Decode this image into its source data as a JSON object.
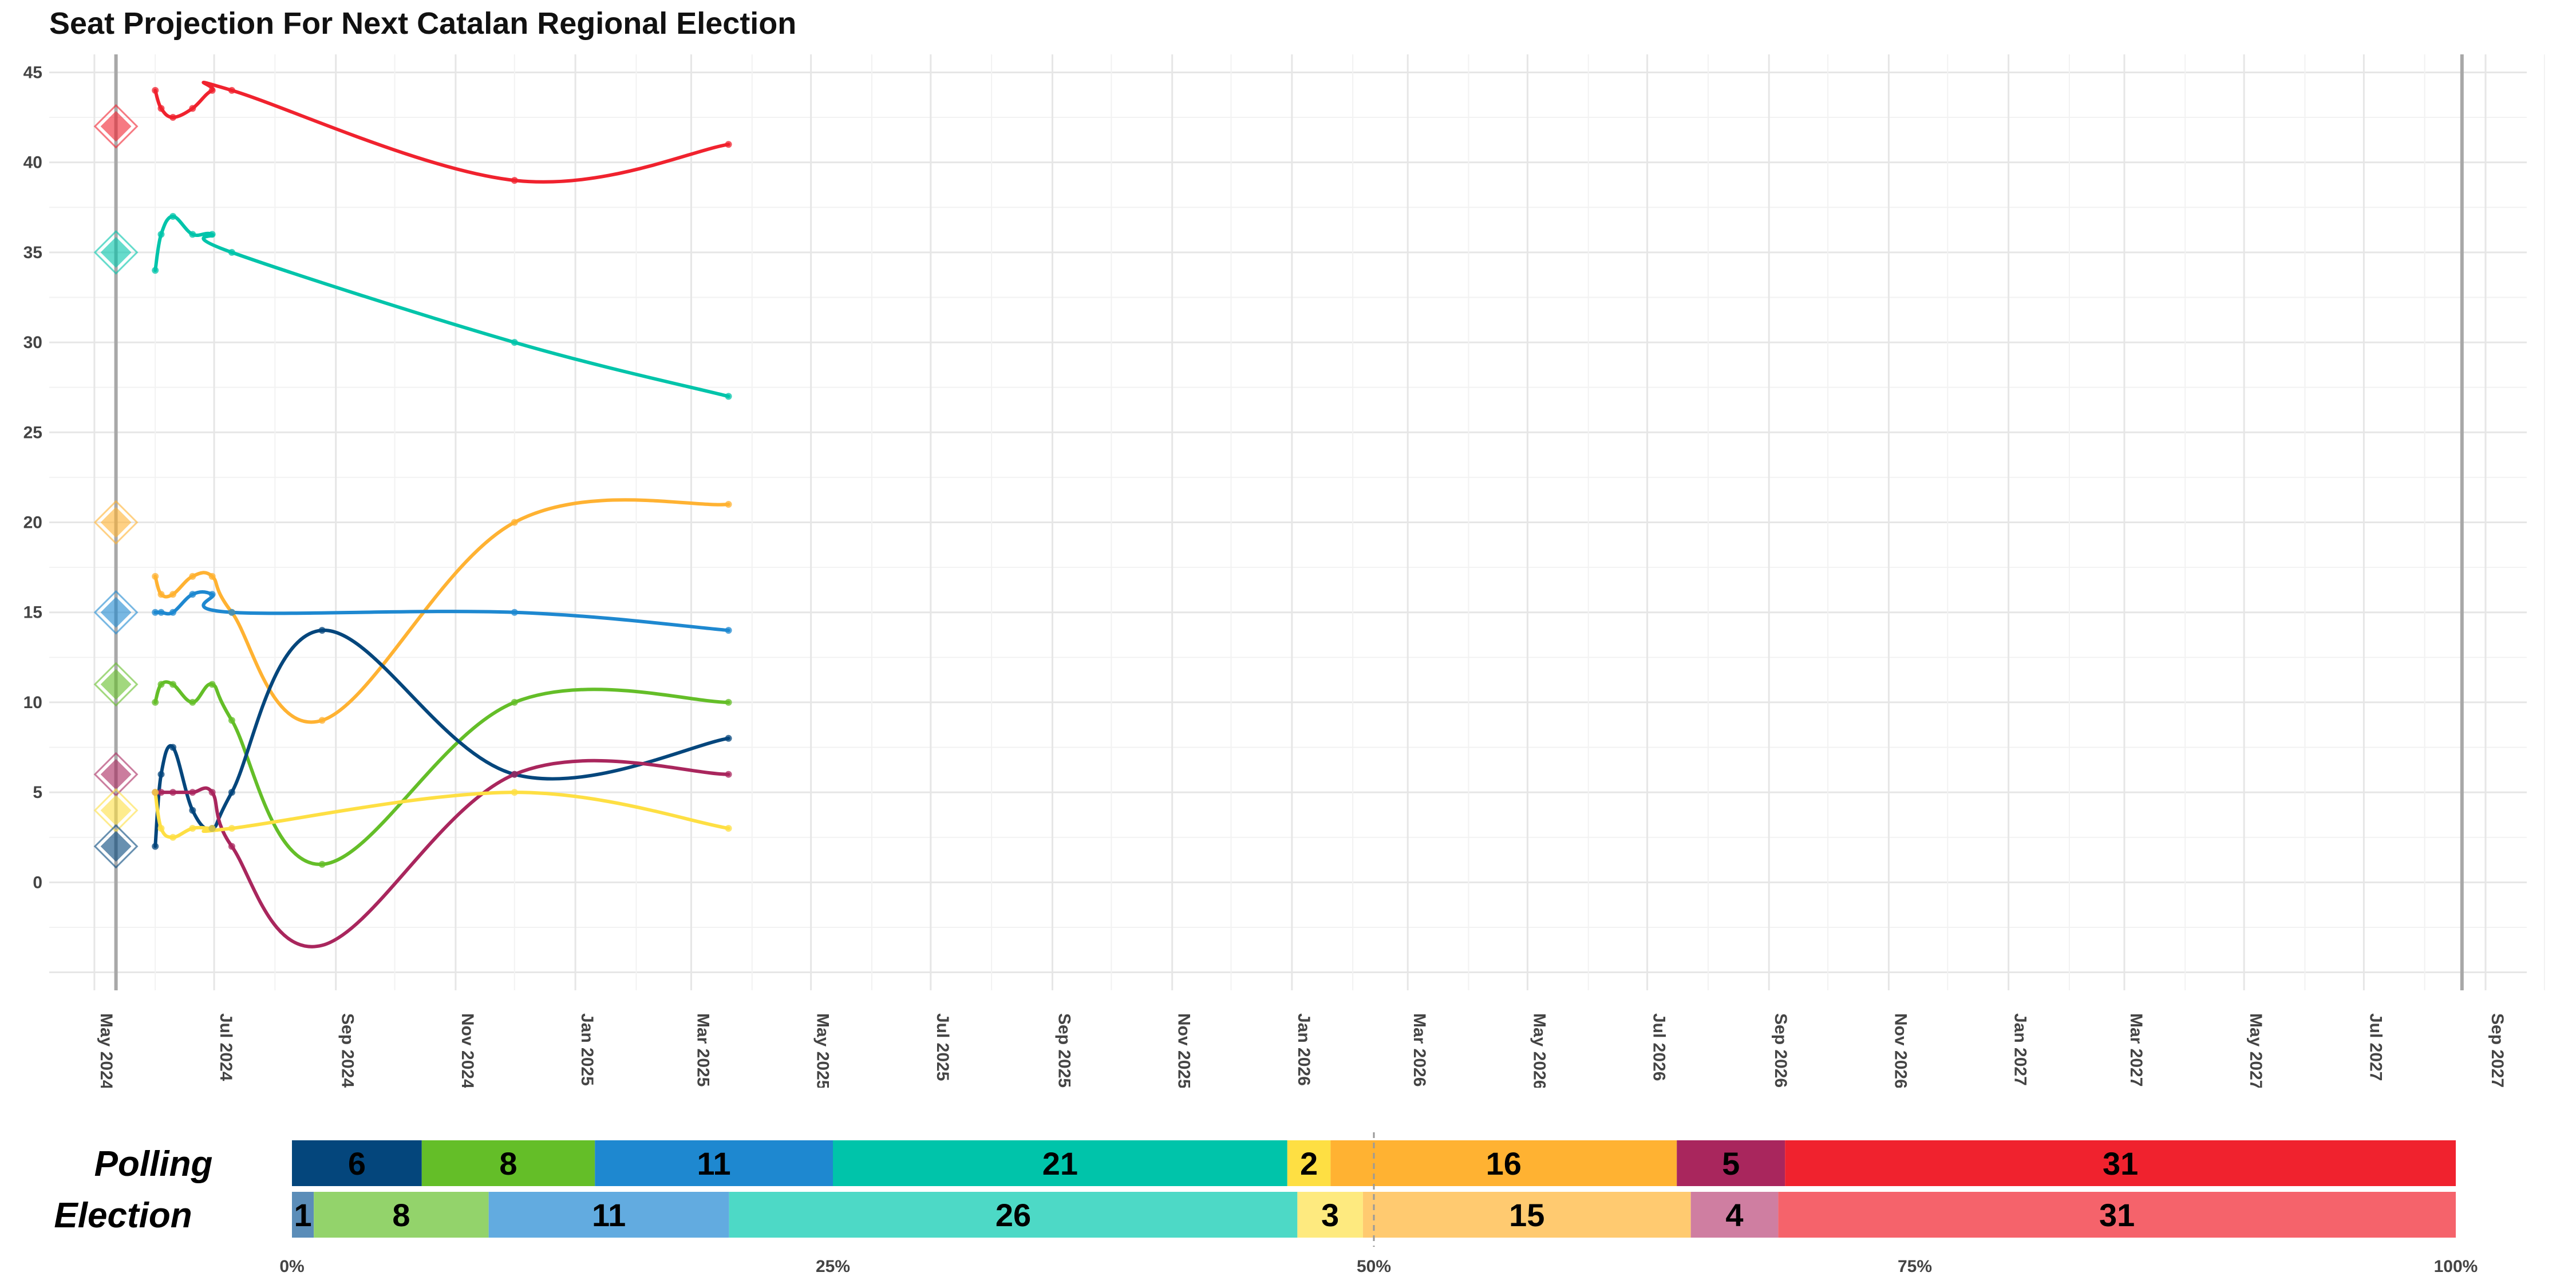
{
  "chart_data": [
    {
      "type": "line",
      "title": "Seat Projection For Next Catalan Regional Election",
      "xlabel": "",
      "ylabel": "",
      "x_ticks": [
        "May 2024",
        "Jul 2024",
        "Sep 2024",
        "Nov 2024",
        "Jan 2025",
        "Mar 2025",
        "May 2025",
        "Jul 2025",
        "Sep 2025",
        "Nov 2025",
        "Jan 2026",
        "Mar 2026",
        "May 2026",
        "Jul 2026",
        "Sep 2026",
        "Nov 2026",
        "Jan 2027",
        "Mar 2027",
        "May 2027",
        "Jul 2027",
        "Sep 2027"
      ],
      "y_ticks": [
        0,
        5,
        10,
        15,
        20,
        25,
        30,
        35,
        40,
        45
      ],
      "xlim": [
        "2024-04-08",
        "2027-09-22"
      ],
      "ylim": [
        -6,
        46
      ],
      "grid": true,
      "reference_lines": [
        "2024-05-12",
        "2027-08-20"
      ],
      "election_result": [
        {
          "color": "#f0222e",
          "seats": 42
        },
        {
          "color": "#00c4aa",
          "seats": 35
        },
        {
          "color": "#ffb232",
          "seats": 20
        },
        {
          "color": "#1e88d0",
          "seats": 15
        },
        {
          "color": "#64be28",
          "seats": 11
        },
        {
          "color": "#a9265d",
          "seats": 6
        },
        {
          "color": "#fedf43",
          "seats": 4
        },
        {
          "color": "#04467c",
          "seats": 2
        }
      ],
      "series": [
        {
          "color": "#f0222e",
          "x": [
            "2024-06-01",
            "2024-06-04",
            "2024-06-10",
            "2024-06-20",
            "2024-06-30",
            "2024-07-10",
            "2024-12-01",
            "2025-03-20"
          ],
          "y": [
            44,
            43,
            42.5,
            43,
            44,
            44,
            39,
            41
          ]
        },
        {
          "color": "#00c4aa",
          "x": [
            "2024-06-01",
            "2024-06-04",
            "2024-06-10",
            "2024-06-20",
            "2024-06-30",
            "2024-07-10",
            "2024-12-01",
            "2025-03-20"
          ],
          "y": [
            34,
            36,
            37,
            36,
            36,
            35,
            30,
            27
          ]
        },
        {
          "color": "#ffb232",
          "x": [
            "2024-06-01",
            "2024-06-04",
            "2024-06-10",
            "2024-06-20",
            "2024-06-30",
            "2024-07-10",
            "2024-08-25",
            "2024-12-01",
            "2025-03-20"
          ],
          "y": [
            17,
            16,
            16,
            17,
            17,
            15,
            9,
            20,
            21
          ]
        },
        {
          "color": "#1e88d0",
          "x": [
            "2024-06-01",
            "2024-06-04",
            "2024-06-10",
            "2024-06-20",
            "2024-06-30",
            "2024-07-10",
            "2024-12-01",
            "2025-03-20"
          ],
          "y": [
            15,
            15,
            15,
            16,
            16,
            15,
            15,
            14
          ]
        },
        {
          "color": "#64be28",
          "x": [
            "2024-06-01",
            "2024-06-04",
            "2024-06-10",
            "2024-06-20",
            "2024-06-30",
            "2024-07-10",
            "2024-08-25",
            "2024-12-01",
            "2025-03-20"
          ],
          "y": [
            10,
            11,
            11,
            10,
            11,
            9,
            1,
            10,
            10
          ]
        },
        {
          "color": "#04467c",
          "x": [
            "2024-06-01",
            "2024-06-04",
            "2024-06-10",
            "2024-06-20",
            "2024-06-30",
            "2024-07-10",
            "2024-08-25",
            "2024-12-01",
            "2025-03-20"
          ],
          "y": [
            2,
            6,
            7.5,
            4,
            3,
            5,
            14,
            6,
            8
          ]
        },
        {
          "color": "#a9265d",
          "x": [
            "2024-06-01",
            "2024-06-04",
            "2024-06-10",
            "2024-06-20",
            "2024-06-30",
            "2024-07-10",
            "2024-08-25",
            "2024-12-01",
            "2025-03-20"
          ],
          "y": [
            5,
            5,
            5,
            5,
            5,
            2,
            -3.5,
            6,
            6
          ]
        },
        {
          "color": "#fedf43",
          "x": [
            "2024-06-01",
            "2024-06-04",
            "2024-06-10",
            "2024-06-20",
            "2024-06-30",
            "2024-07-10",
            "2024-12-01",
            "2025-03-20"
          ],
          "y": [
            5,
            3,
            2.5,
            3,
            3,
            3,
            5,
            3
          ]
        }
      ]
    },
    {
      "type": "bar",
      "orientation": "horizontal-stacked",
      "categories": [
        "Polling",
        "Election"
      ],
      "x_ticks": [
        "0%",
        "25%",
        "50%",
        "75%",
        "100%"
      ],
      "majority_line": 50,
      "series": [
        {
          "polling_color": "#04467c",
          "election_color": "#5b8db8",
          "values": [
            6,
            1
          ]
        },
        {
          "polling_color": "#64be28",
          "election_color": "#93d36b",
          "values": [
            8,
            8
          ]
        },
        {
          "polling_color": "#1e88d0",
          "election_color": "#62abe0",
          "values": [
            11,
            11
          ]
        },
        {
          "polling_color": "#00c4aa",
          "election_color": "#4dd9c6",
          "values": [
            21,
            26
          ]
        },
        {
          "polling_color": "#fedf43",
          "election_color": "#feea7f",
          "values": [
            2,
            3
          ]
        },
        {
          "polling_color": "#ffb232",
          "election_color": "#ffca70",
          "values": [
            16,
            15
          ]
        },
        {
          "polling_color": "#a9265d",
          "election_color": "#cf7ea1",
          "values": [
            5,
            4
          ]
        },
        {
          "polling_color": "#f0222e",
          "election_color": "#f5636b",
          "values": [
            31,
            31
          ]
        }
      ]
    }
  ]
}
